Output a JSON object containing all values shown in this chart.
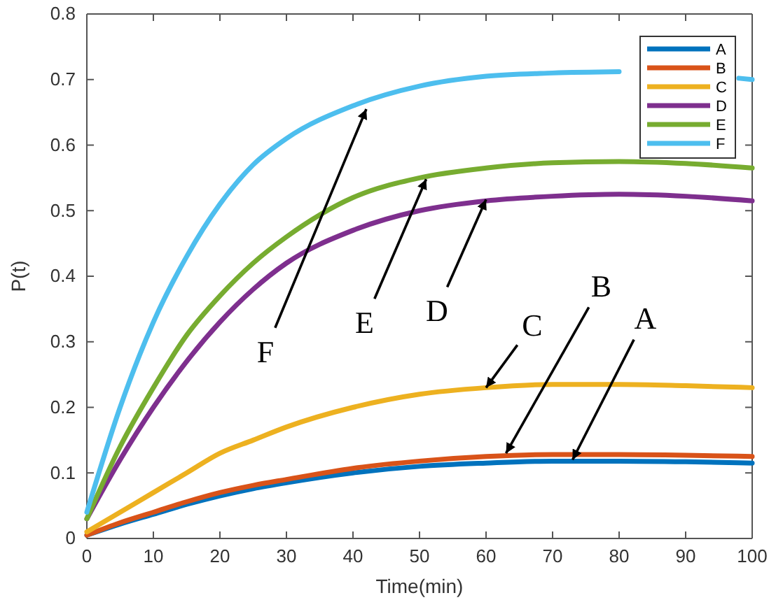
{
  "chart_data": {
    "type": "line",
    "xlabel": "Time(min)",
    "ylabel": "P(t)",
    "xlim": [
      0,
      100
    ],
    "xticks": [
      0,
      10,
      20,
      30,
      40,
      50,
      60,
      70,
      80,
      90,
      100
    ],
    "ylim": [
      0,
      0.8
    ],
    "yticks": [
      0,
      0.1,
      0.2,
      0.3,
      0.4,
      0.5,
      0.6,
      0.7,
      0.8
    ],
    "x": [
      0,
      5,
      10,
      15,
      20,
      25,
      30,
      40,
      50,
      60,
      70,
      80,
      90,
      100
    ],
    "grid": false,
    "legend": "top right",
    "series": [
      {
        "name": "A",
        "color": "#0072bd",
        "values": [
          0.005,
          0.022,
          0.037,
          0.052,
          0.065,
          0.076,
          0.085,
          0.1,
          0.11,
          0.115,
          0.118,
          0.118,
          0.117,
          0.115
        ]
      },
      {
        "name": "B",
        "color": "#d95319",
        "values": [
          0.005,
          0.024,
          0.04,
          0.056,
          0.07,
          0.081,
          0.09,
          0.107,
          0.118,
          0.125,
          0.128,
          0.128,
          0.127,
          0.125
        ]
      },
      {
        "name": "C",
        "color": "#edb120",
        "values": [
          0.01,
          0.04,
          0.07,
          0.1,
          0.13,
          0.15,
          0.17,
          0.2,
          0.22,
          0.23,
          0.235,
          0.235,
          0.233,
          0.23
        ]
      },
      {
        "name": "D",
        "color": "#7e2f8e",
        "values": [
          0.03,
          0.12,
          0.2,
          0.27,
          0.33,
          0.38,
          0.42,
          0.47,
          0.5,
          0.515,
          0.522,
          0.525,
          0.522,
          0.515
        ]
      },
      {
        "name": "E",
        "color": "#77ac30",
        "values": [
          0.03,
          0.14,
          0.23,
          0.31,
          0.37,
          0.42,
          0.46,
          0.52,
          0.55,
          0.565,
          0.573,
          0.575,
          0.572,
          0.565
        ]
      },
      {
        "name": "F",
        "color": "#4dbeee",
        "x": [
          0,
          5,
          10,
          15,
          20,
          25,
          30,
          40,
          50,
          60,
          70,
          80,
          90,
          98,
          100
        ],
        "values": [
          0.04,
          0.2,
          0.33,
          0.43,
          0.51,
          0.57,
          0.61,
          0.66,
          0.69,
          0.705,
          0.71,
          0.712,
          null,
          0.702,
          0.7
        ]
      }
    ],
    "annotations": [
      {
        "text": "F",
        "x": 42,
        "y": 0.655
      },
      {
        "text": "E",
        "x": 51,
        "y": 0.548
      },
      {
        "text": "D",
        "x": 60,
        "y": 0.517
      },
      {
        "text": "C",
        "x": 60,
        "y": 0.23
      },
      {
        "text": "B",
        "x": 63,
        "y": 0.13
      },
      {
        "text": "A",
        "x": 73,
        "y": 0.12
      }
    ]
  }
}
